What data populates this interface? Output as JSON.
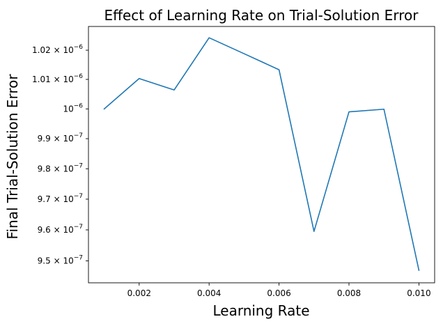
{
  "chart_data": {
    "type": "line",
    "title": "Effect of Learning Rate on Trial-Solution Error",
    "xlabel": "Learning Rate",
    "ylabel": "Final Trial-Solution Error",
    "yscale": "log",
    "xlim": [
      0.00055,
      0.01045
    ],
    "ylim": [
      9.43e-07,
      1.0282e-06
    ],
    "grid": false,
    "series": [
      {
        "color": "#1f77b4",
        "x": [
          0.001,
          0.002,
          0.003,
          0.004,
          0.005,
          0.006,
          0.007,
          0.008,
          0.009,
          0.01
        ],
        "y": [
          1e-06,
          1.0103e-06,
          1.0064e-06,
          1.0243e-06,
          1.0188e-06,
          1.0133e-06,
          9.595e-07,
          9.99e-07,
          9.999e-07,
          9.47e-07
        ]
      }
    ],
    "x_ticks": [
      {
        "value": 0.002,
        "label": "0.002"
      },
      {
        "value": 0.004,
        "label": "0.004"
      },
      {
        "value": 0.006,
        "label": "0.006"
      },
      {
        "value": 0.008,
        "label": "0.008"
      },
      {
        "value": 0.01,
        "label": "0.010"
      }
    ],
    "y_ticks": [
      {
        "value": 9.5e-07,
        "mantissa": "9.5",
        "exp": "−7"
      },
      {
        "value": 9.6e-07,
        "mantissa": "9.6",
        "exp": "−7"
      },
      {
        "value": 9.7e-07,
        "mantissa": "9.7",
        "exp": "−7"
      },
      {
        "value": 9.8e-07,
        "mantissa": "9.8",
        "exp": "−7"
      },
      {
        "value": 9.9e-07,
        "mantissa": "9.9",
        "exp": "−7"
      },
      {
        "value": 1e-06,
        "mantissa": "",
        "exp": "−6"
      },
      {
        "value": 1.01e-06,
        "mantissa": "1.01",
        "exp": "−6"
      },
      {
        "value": 1.02e-06,
        "mantissa": "1.02",
        "exp": "−6"
      }
    ]
  }
}
